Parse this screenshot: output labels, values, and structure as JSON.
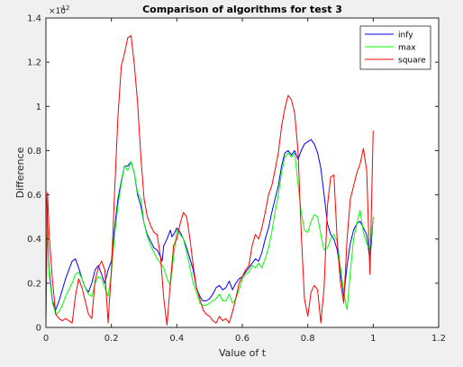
{
  "chart_data": {
    "type": "line",
    "title": "Comparison of algorithms for test 3",
    "xlabel": "Value of t",
    "ylabel": "Difference",
    "y_exponent_label": "×10",
    "y_exponent_power": "-12",
    "xlim": [
      0,
      1.2
    ],
    "ylim": [
      0,
      1.4
    ],
    "x_ticks": [
      "0",
      "0.2",
      "0.4",
      "0.6",
      "0.8",
      "1",
      "1.2"
    ],
    "y_ticks": [
      "0",
      "0.2",
      "0.4",
      "0.6",
      "0.8",
      "1",
      "1.2",
      "1.4"
    ],
    "grid": false,
    "legend_position": "top-right",
    "series": [
      {
        "name": "infy",
        "color": "#0000ff",
        "points": [
          [
            0,
            0.62
          ],
          [
            0.01,
            0.26
          ],
          [
            0.02,
            0.12
          ],
          [
            0.03,
            0.08
          ],
          [
            0.04,
            0.12
          ],
          [
            0.05,
            0.17
          ],
          [
            0.06,
            0.22
          ],
          [
            0.07,
            0.26
          ],
          [
            0.08,
            0.3
          ],
          [
            0.09,
            0.31
          ],
          [
            0.1,
            0.27
          ],
          [
            0.11,
            0.22
          ],
          [
            0.12,
            0.18
          ],
          [
            0.13,
            0.16
          ],
          [
            0.14,
            0.2
          ],
          [
            0.15,
            0.26
          ],
          [
            0.16,
            0.28
          ],
          [
            0.17,
            0.24
          ],
          [
            0.18,
            0.2
          ],
          [
            0.19,
            0.26
          ],
          [
            0.2,
            0.3
          ],
          [
            0.21,
            0.45
          ],
          [
            0.22,
            0.58
          ],
          [
            0.23,
            0.66
          ],
          [
            0.24,
            0.73
          ],
          [
            0.25,
            0.73
          ],
          [
            0.26,
            0.75
          ],
          [
            0.27,
            0.7
          ],
          [
            0.28,
            0.6
          ],
          [
            0.29,
            0.55
          ],
          [
            0.3,
            0.47
          ],
          [
            0.31,
            0.42
          ],
          [
            0.32,
            0.39
          ],
          [
            0.33,
            0.36
          ],
          [
            0.34,
            0.35
          ],
          [
            0.35,
            0.32
          ],
          [
            0.355,
            0.3
          ],
          [
            0.36,
            0.37
          ],
          [
            0.37,
            0.4
          ],
          [
            0.38,
            0.44
          ],
          [
            0.385,
            0.41
          ],
          [
            0.39,
            0.42
          ],
          [
            0.4,
            0.45
          ],
          [
            0.41,
            0.43
          ],
          [
            0.42,
            0.4
          ],
          [
            0.43,
            0.36
          ],
          [
            0.44,
            0.31
          ],
          [
            0.45,
            0.26
          ],
          [
            0.46,
            0.18
          ],
          [
            0.47,
            0.14
          ],
          [
            0.48,
            0.12
          ],
          [
            0.49,
            0.12
          ],
          [
            0.5,
            0.13
          ],
          [
            0.51,
            0.15
          ],
          [
            0.52,
            0.18
          ],
          [
            0.53,
            0.19
          ],
          [
            0.54,
            0.17
          ],
          [
            0.55,
            0.18
          ],
          [
            0.56,
            0.21
          ],
          [
            0.57,
            0.17
          ],
          [
            0.58,
            0.2
          ],
          [
            0.59,
            0.22
          ],
          [
            0.6,
            0.23
          ],
          [
            0.61,
            0.25
          ],
          [
            0.62,
            0.27
          ],
          [
            0.63,
            0.29
          ],
          [
            0.64,
            0.31
          ],
          [
            0.65,
            0.3
          ],
          [
            0.66,
            0.34
          ],
          [
            0.67,
            0.4
          ],
          [
            0.68,
            0.45
          ],
          [
            0.69,
            0.52
          ],
          [
            0.7,
            0.58
          ],
          [
            0.71,
            0.64
          ],
          [
            0.72,
            0.73
          ],
          [
            0.73,
            0.79
          ],
          [
            0.74,
            0.8
          ],
          [
            0.75,
            0.78
          ],
          [
            0.76,
            0.8
          ],
          [
            0.77,
            0.76
          ],
          [
            0.78,
            0.8
          ],
          [
            0.79,
            0.83
          ],
          [
            0.8,
            0.84
          ],
          [
            0.81,
            0.85
          ],
          [
            0.82,
            0.83
          ],
          [
            0.83,
            0.79
          ],
          [
            0.84,
            0.72
          ],
          [
            0.85,
            0.6
          ],
          [
            0.86,
            0.47
          ],
          [
            0.87,
            0.42
          ],
          [
            0.88,
            0.4
          ],
          [
            0.89,
            0.35
          ],
          [
            0.9,
            0.25
          ],
          [
            0.91,
            0.14
          ],
          [
            0.92,
            0.28
          ],
          [
            0.93,
            0.38
          ],
          [
            0.94,
            0.44
          ],
          [
            0.95,
            0.47
          ],
          [
            0.96,
            0.48
          ],
          [
            0.97,
            0.45
          ],
          [
            0.98,
            0.42
          ],
          [
            0.99,
            0.3
          ],
          [
            1.0,
            0.5
          ]
        ]
      },
      {
        "name": "max",
        "color": "#00ff00",
        "points": [
          [
            0,
            0.58
          ],
          [
            0.01,
            0.24
          ],
          [
            0.02,
            0.11
          ],
          [
            0.03,
            0.06
          ],
          [
            0.04,
            0.07
          ],
          [
            0.05,
            0.1
          ],
          [
            0.06,
            0.14
          ],
          [
            0.07,
            0.17
          ],
          [
            0.08,
            0.2
          ],
          [
            0.09,
            0.24
          ],
          [
            0.1,
            0.25
          ],
          [
            0.11,
            0.22
          ],
          [
            0.12,
            0.18
          ],
          [
            0.13,
            0.15
          ],
          [
            0.14,
            0.14
          ],
          [
            0.15,
            0.2
          ],
          [
            0.16,
            0.23
          ],
          [
            0.17,
            0.22
          ],
          [
            0.18,
            0.18
          ],
          [
            0.19,
            0.14
          ],
          [
            0.2,
            0.25
          ],
          [
            0.21,
            0.42
          ],
          [
            0.22,
            0.55
          ],
          [
            0.23,
            0.65
          ],
          [
            0.24,
            0.73
          ],
          [
            0.25,
            0.71
          ],
          [
            0.26,
            0.75
          ],
          [
            0.27,
            0.7
          ],
          [
            0.28,
            0.61
          ],
          [
            0.29,
            0.58
          ],
          [
            0.3,
            0.47
          ],
          [
            0.31,
            0.41
          ],
          [
            0.32,
            0.37
          ],
          [
            0.33,
            0.34
          ],
          [
            0.34,
            0.31
          ],
          [
            0.35,
            0.29
          ],
          [
            0.36,
            0.27
          ],
          [
            0.37,
            0.22
          ],
          [
            0.38,
            0.19
          ],
          [
            0.39,
            0.32
          ],
          [
            0.4,
            0.44
          ],
          [
            0.41,
            0.42
          ],
          [
            0.42,
            0.4
          ],
          [
            0.43,
            0.34
          ],
          [
            0.44,
            0.27
          ],
          [
            0.45,
            0.2
          ],
          [
            0.46,
            0.16
          ],
          [
            0.47,
            0.11
          ],
          [
            0.48,
            0.1
          ],
          [
            0.49,
            0.1
          ],
          [
            0.5,
            0.11
          ],
          [
            0.51,
            0.12
          ],
          [
            0.52,
            0.13
          ],
          [
            0.53,
            0.15
          ],
          [
            0.54,
            0.12
          ],
          [
            0.55,
            0.12
          ],
          [
            0.56,
            0.15
          ],
          [
            0.57,
            0.11
          ],
          [
            0.58,
            0.13
          ],
          [
            0.59,
            0.17
          ],
          [
            0.6,
            0.22
          ],
          [
            0.61,
            0.24
          ],
          [
            0.62,
            0.25
          ],
          [
            0.63,
            0.28
          ],
          [
            0.64,
            0.27
          ],
          [
            0.65,
            0.29
          ],
          [
            0.66,
            0.27
          ],
          [
            0.67,
            0.31
          ],
          [
            0.68,
            0.36
          ],
          [
            0.69,
            0.43
          ],
          [
            0.7,
            0.52
          ],
          [
            0.71,
            0.6
          ],
          [
            0.72,
            0.7
          ],
          [
            0.73,
            0.77
          ],
          [
            0.74,
            0.79
          ],
          [
            0.75,
            0.77
          ],
          [
            0.76,
            0.79
          ],
          [
            0.77,
            0.65
          ],
          [
            0.78,
            0.52
          ],
          [
            0.79,
            0.44
          ],
          [
            0.8,
            0.43
          ],
          [
            0.81,
            0.48
          ],
          [
            0.82,
            0.51
          ],
          [
            0.83,
            0.5
          ],
          [
            0.84,
            0.42
          ],
          [
            0.85,
            0.35
          ],
          [
            0.86,
            0.36
          ],
          [
            0.87,
            0.4
          ],
          [
            0.88,
            0.42
          ],
          [
            0.89,
            0.39
          ],
          [
            0.9,
            0.27
          ],
          [
            0.91,
            0.16
          ],
          [
            0.92,
            0.08
          ],
          [
            0.93,
            0.25
          ],
          [
            0.94,
            0.4
          ],
          [
            0.95,
            0.47
          ],
          [
            0.96,
            0.53
          ],
          [
            0.97,
            0.43
          ],
          [
            0.98,
            0.38
          ],
          [
            0.99,
            0.35
          ],
          [
            1.0,
            0.5
          ]
        ]
      },
      {
        "name": "square",
        "color": "#ff0000",
        "points": [
          [
            0,
            0.0
          ],
          [
            0.005,
            0.61
          ],
          [
            0.01,
            0.42
          ],
          [
            0.02,
            0.21
          ],
          [
            0.03,
            0.06
          ],
          [
            0.04,
            0.04
          ],
          [
            0.05,
            0.03
          ],
          [
            0.06,
            0.04
          ],
          [
            0.07,
            0.03
          ],
          [
            0.08,
            0.02
          ],
          [
            0.09,
            0.14
          ],
          [
            0.1,
            0.22
          ],
          [
            0.11,
            0.18
          ],
          [
            0.12,
            0.12
          ],
          [
            0.13,
            0.06
          ],
          [
            0.14,
            0.04
          ],
          [
            0.15,
            0.21
          ],
          [
            0.16,
            0.27
          ],
          [
            0.17,
            0.3
          ],
          [
            0.18,
            0.26
          ],
          [
            0.19,
            0.02
          ],
          [
            0.2,
            0.26
          ],
          [
            0.21,
            0.62
          ],
          [
            0.22,
            0.95
          ],
          [
            0.23,
            1.18
          ],
          [
            0.24,
            1.24
          ],
          [
            0.25,
            1.31
          ],
          [
            0.26,
            1.32
          ],
          [
            0.27,
            1.19
          ],
          [
            0.28,
            1.02
          ],
          [
            0.29,
            0.77
          ],
          [
            0.3,
            0.58
          ],
          [
            0.31,
            0.5
          ],
          [
            0.32,
            0.46
          ],
          [
            0.33,
            0.43
          ],
          [
            0.34,
            0.42
          ],
          [
            0.35,
            0.32
          ],
          [
            0.36,
            0.13
          ],
          [
            0.37,
            0.01
          ],
          [
            0.38,
            0.2
          ],
          [
            0.39,
            0.37
          ],
          [
            0.4,
            0.4
          ],
          [
            0.41,
            0.47
          ],
          [
            0.42,
            0.52
          ],
          [
            0.43,
            0.5
          ],
          [
            0.44,
            0.4
          ],
          [
            0.45,
            0.28
          ],
          [
            0.46,
            0.18
          ],
          [
            0.47,
            0.13
          ],
          [
            0.48,
            0.08
          ],
          [
            0.49,
            0.06
          ],
          [
            0.5,
            0.05
          ],
          [
            0.51,
            0.03
          ],
          [
            0.52,
            0.02
          ],
          [
            0.53,
            0.05
          ],
          [
            0.54,
            0.03
          ],
          [
            0.55,
            0.04
          ],
          [
            0.56,
            0.02
          ],
          [
            0.57,
            0.07
          ],
          [
            0.58,
            0.13
          ],
          [
            0.59,
            0.2
          ],
          [
            0.6,
            0.23
          ],
          [
            0.61,
            0.26
          ],
          [
            0.62,
            0.28
          ],
          [
            0.63,
            0.37
          ],
          [
            0.64,
            0.42
          ],
          [
            0.65,
            0.4
          ],
          [
            0.66,
            0.45
          ],
          [
            0.67,
            0.52
          ],
          [
            0.68,
            0.6
          ],
          [
            0.69,
            0.64
          ],
          [
            0.7,
            0.71
          ],
          [
            0.71,
            0.79
          ],
          [
            0.72,
            0.91
          ],
          [
            0.73,
            0.99
          ],
          [
            0.74,
            1.05
          ],
          [
            0.75,
            1.03
          ],
          [
            0.76,
            0.97
          ],
          [
            0.77,
            0.8
          ],
          [
            0.78,
            0.43
          ],
          [
            0.79,
            0.13
          ],
          [
            0.8,
            0.05
          ],
          [
            0.81,
            0.16
          ],
          [
            0.82,
            0.19
          ],
          [
            0.83,
            0.17
          ],
          [
            0.84,
            0.02
          ],
          [
            0.85,
            0.18
          ],
          [
            0.86,
            0.55
          ],
          [
            0.87,
            0.68
          ],
          [
            0.88,
            0.69
          ],
          [
            0.89,
            0.39
          ],
          [
            0.9,
            0.2
          ],
          [
            0.91,
            0.11
          ],
          [
            0.92,
            0.4
          ],
          [
            0.93,
            0.58
          ],
          [
            0.94,
            0.64
          ],
          [
            0.95,
            0.7
          ],
          [
            0.96,
            0.74
          ],
          [
            0.97,
            0.81
          ],
          [
            0.98,
            0.71
          ],
          [
            0.99,
            0.24
          ],
          [
            1.0,
            0.89
          ]
        ]
      }
    ]
  }
}
